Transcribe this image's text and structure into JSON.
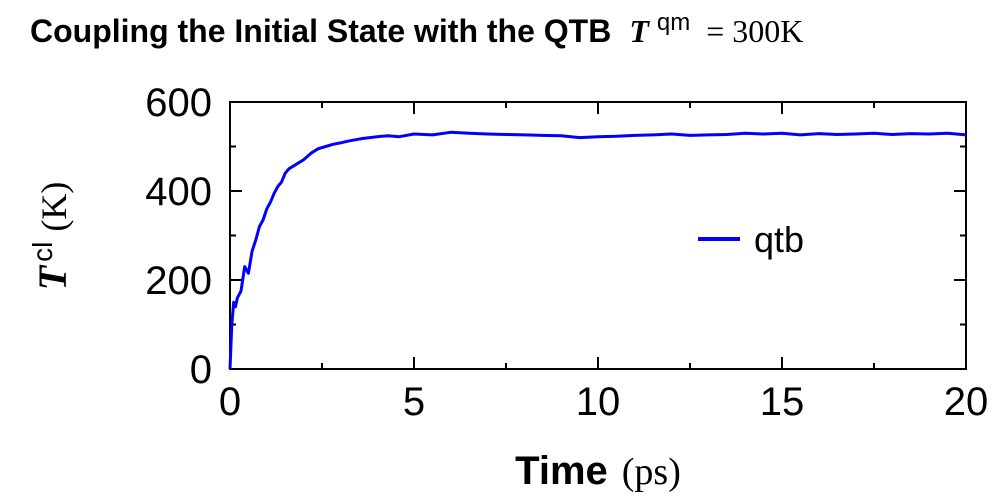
{
  "chart_data": {
    "type": "line",
    "title": {
      "text": "Coupling the Initial State with the QTB",
      "var": "T",
      "var_sup": "qm",
      "rest": "= 300K"
    },
    "xlabel": {
      "bold": "Time",
      "unit": "(ps)"
    },
    "ylabel": {
      "var": "T",
      "var_sup": "cl",
      "unit": "(K)"
    },
    "xlim": [
      0,
      20
    ],
    "ylim": [
      0,
      600
    ],
    "xticks": [
      0,
      5,
      10,
      15,
      20
    ],
    "yticks": [
      0,
      200,
      400,
      600
    ],
    "grid": false,
    "legend": {
      "position": "center-right"
    },
    "series": [
      {
        "name": "qtb",
        "color": "#0000ff",
        "x": [
          0,
          0.05,
          0.1,
          0.15,
          0.2,
          0.3,
          0.4,
          0.5,
          0.6,
          0.7,
          0.8,
          0.9,
          1.0,
          1.1,
          1.2,
          1.3,
          1.4,
          1.5,
          1.6,
          1.8,
          2.0,
          2.2,
          2.4,
          2.6,
          2.8,
          3.0,
          3.2,
          3.4,
          3.6,
          3.8,
          4.0,
          4.3,
          4.6,
          5.0,
          5.5,
          6.0,
          6.5,
          7.0,
          7.5,
          8.0,
          8.5,
          9.0,
          9.5,
          10.0,
          10.5,
          11.0,
          11.5,
          12.0,
          12.5,
          13.0,
          13.5,
          14.0,
          14.5,
          15.0,
          15.5,
          16.0,
          16.5,
          17.0,
          17.5,
          18.0,
          18.5,
          19.0,
          19.5,
          20.0
        ],
        "y": [
          0,
          100,
          150,
          140,
          160,
          175,
          230,
          215,
          265,
          290,
          320,
          335,
          360,
          375,
          395,
          410,
          420,
          440,
          450,
          460,
          470,
          485,
          495,
          500,
          505,
          508,
          512,
          515,
          518,
          520,
          522,
          524,
          522,
          528,
          526,
          532,
          530,
          528,
          527,
          526,
          525,
          524,
          520,
          522,
          523,
          525,
          526,
          528,
          525,
          526,
          527,
          530,
          528,
          530,
          526,
          529,
          527,
          528,
          530,
          527,
          529,
          528,
          530,
          526
        ]
      }
    ]
  }
}
